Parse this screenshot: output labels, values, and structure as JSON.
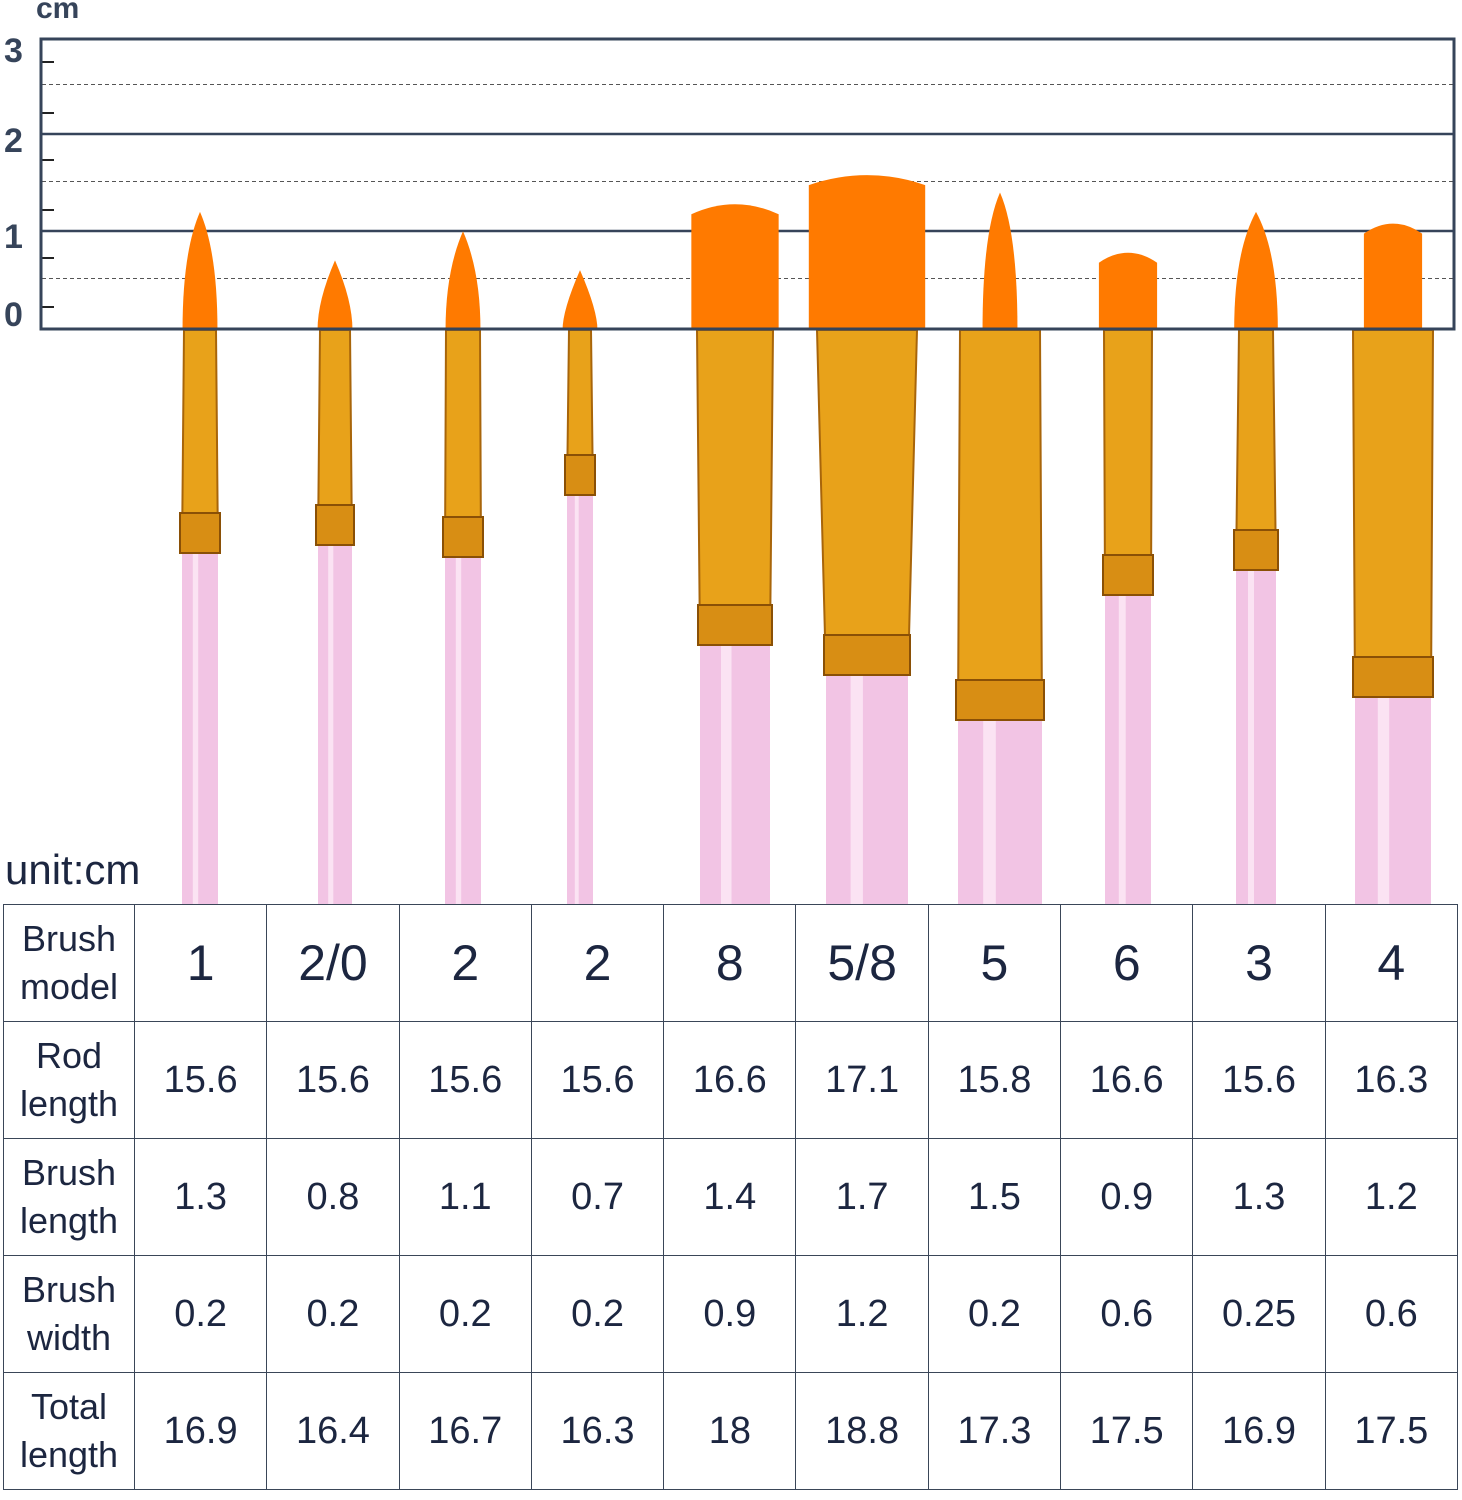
{
  "ruler": {
    "unit": "cm",
    "ticks": [
      "3",
      "2",
      "1",
      "0"
    ],
    "range_cm": [
      0,
      3
    ]
  },
  "colors": {
    "bristle": "#ff7a00",
    "ferrule": "#e8a21a",
    "handle": "#f2c4e4",
    "text": "#1c2640",
    "axis": "#36445a"
  },
  "unit_label": "unit:cm",
  "table": {
    "row_headers": [
      [
        "Brush",
        "model"
      ],
      [
        "Rod",
        "length"
      ],
      [
        "Brush",
        "length"
      ],
      [
        "Brush",
        "width"
      ],
      [
        "Total",
        "length"
      ]
    ],
    "brush_model": [
      "1",
      "2/0",
      "2",
      "2",
      "8",
      "5/8",
      "5",
      "6",
      "3",
      "4"
    ],
    "rod_length": [
      "15.6",
      "15.6",
      "15.6",
      "15.6",
      "16.6",
      "17.1",
      "15.8",
      "16.6",
      "15.6",
      "16.3"
    ],
    "brush_length": [
      "1.3",
      "0.8",
      "1.1",
      "0.7",
      "1.4",
      "1.7",
      "1.5",
      "0.9",
      "1.3",
      "1.2"
    ],
    "brush_width": [
      "0.2",
      "0.2",
      "0.2",
      "0.2",
      "0.9",
      "1.2",
      "0.2",
      "0.6",
      "0.25",
      "0.6"
    ],
    "total_length": [
      "16.9",
      "16.4",
      "16.7",
      "16.3",
      "18",
      "18.8",
      "17.3",
      "17.5",
      "16.9",
      "17.5"
    ]
  }
}
